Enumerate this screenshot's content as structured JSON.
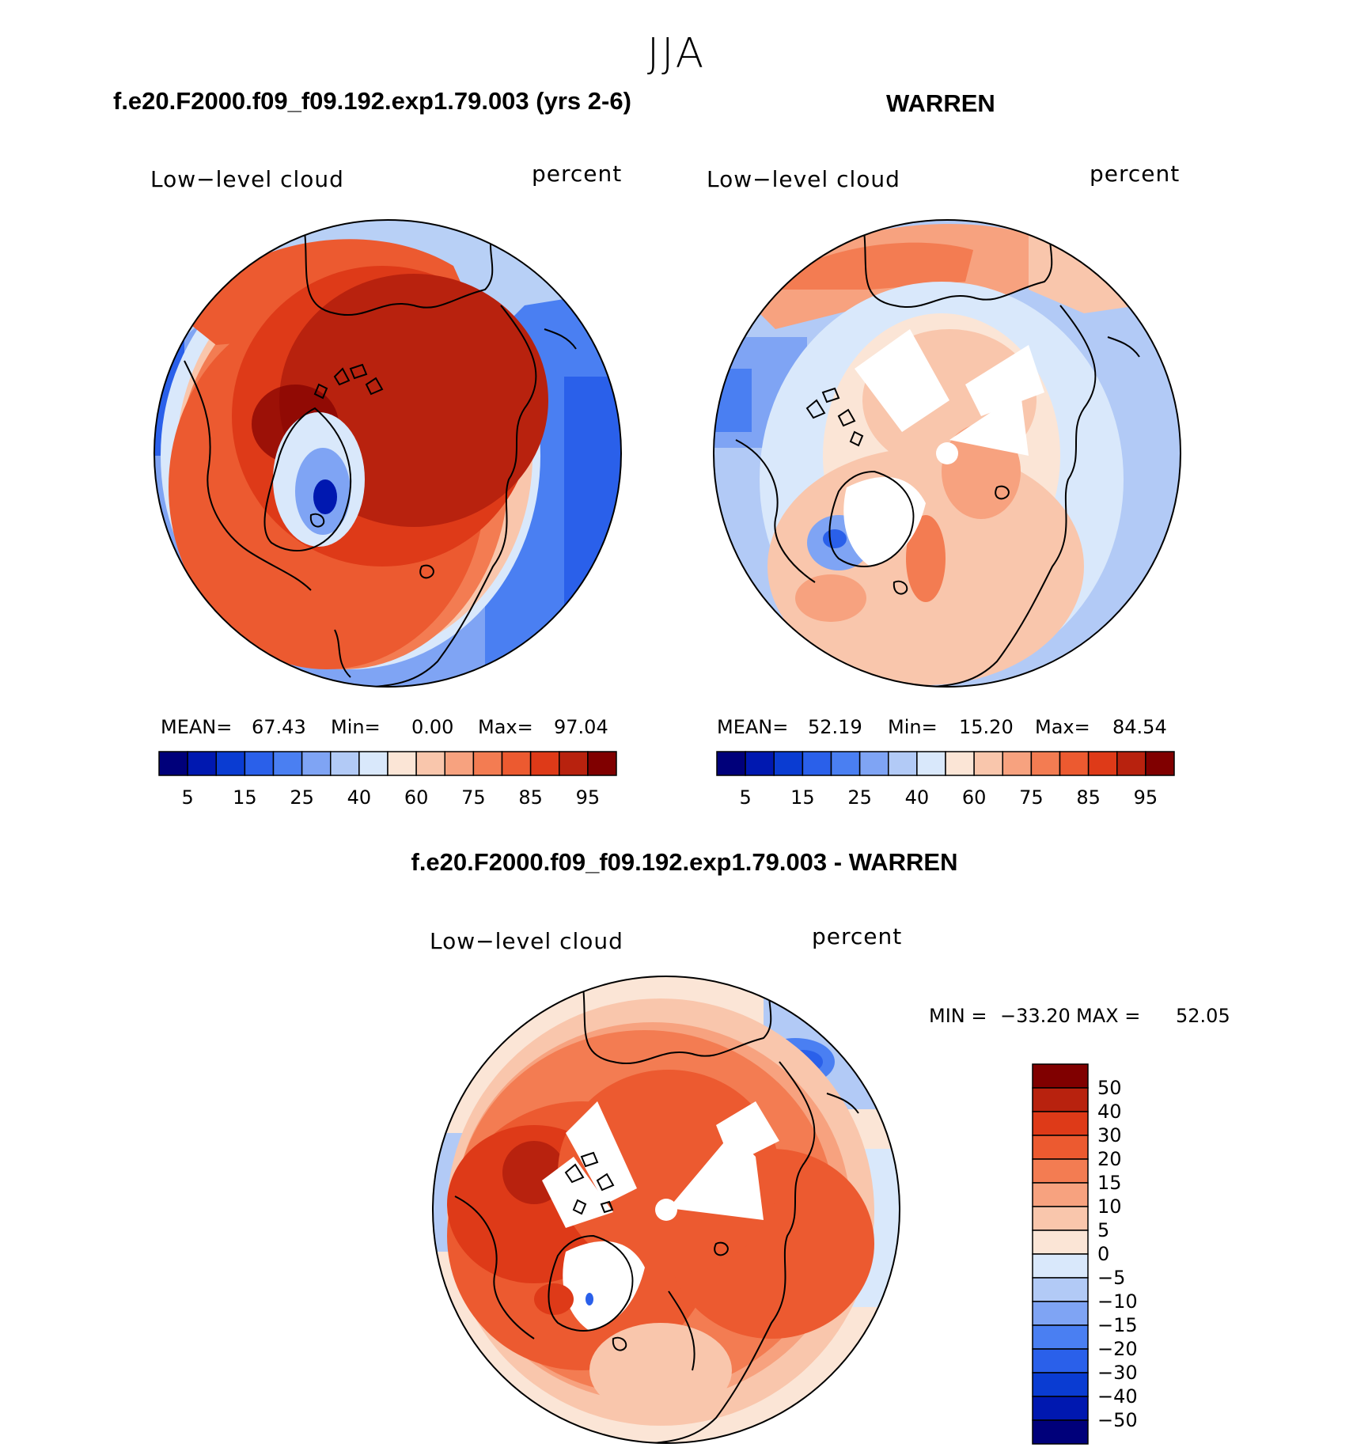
{
  "season": "JJA",
  "panels": [
    {
      "case_title": "f.e20.F2000.f09_f09.192.exp1.79.003 (yrs 2-6)",
      "variable": "Low−level cloud",
      "units": "percent",
      "mean_label": "MEAN=",
      "mean_value": "67.43",
      "min_label": "Min=",
      "min_value": "0.00",
      "max_label": "Max=",
      "max_value": "97.04"
    },
    {
      "case_title": "WARREN",
      "variable": "Low−level cloud",
      "units": "percent",
      "mean_label": "MEAN=",
      "mean_value": "52.19",
      "min_label": "Min=",
      "min_value": "15.20",
      "max_label": "Max=",
      "max_value": "84.54"
    }
  ],
  "abs_colorbar": {
    "colors": [
      "#00007a",
      "#0018b0",
      "#0a3cd2",
      "#2a60ea",
      "#4a7ff2",
      "#7fa4f4",
      "#b2caf6",
      "#d9e8fb",
      "#fbe5d6",
      "#f9c6ac",
      "#f7a27f",
      "#f37c52",
      "#ec5a30",
      "#de3a18",
      "#b8220e",
      "#800000"
    ],
    "tick_labels": [
      "5",
      "15",
      "25",
      "40",
      "60",
      "75",
      "85",
      "95"
    ]
  },
  "diff": {
    "title": "f.e20.F2000.f09_f09.192.exp1.79.003 - WARREN",
    "variable": "Low−level cloud",
    "units": "percent",
    "min_label": "MIN =",
    "min_value": "−33.20",
    "max_label": "MAX =",
    "max_value": "52.05",
    "colorbar_colors": [
      "#800000",
      "#b8220e",
      "#de3a18",
      "#ec5a30",
      "#f37c52",
      "#f7a27f",
      "#f9c6ac",
      "#fbe5d6",
      "#d9e8fb",
      "#b2caf6",
      "#7fa4f4",
      "#4a7ff2",
      "#2a60ea",
      "#0a3cd2",
      "#0018b0",
      "#00007a"
    ],
    "tick_labels": [
      "50",
      "40",
      "30",
      "20",
      "15",
      "10",
      "5",
      "0",
      "−5",
      "−10",
      "−15",
      "−20",
      "−30",
      "−40",
      "−50"
    ]
  }
}
